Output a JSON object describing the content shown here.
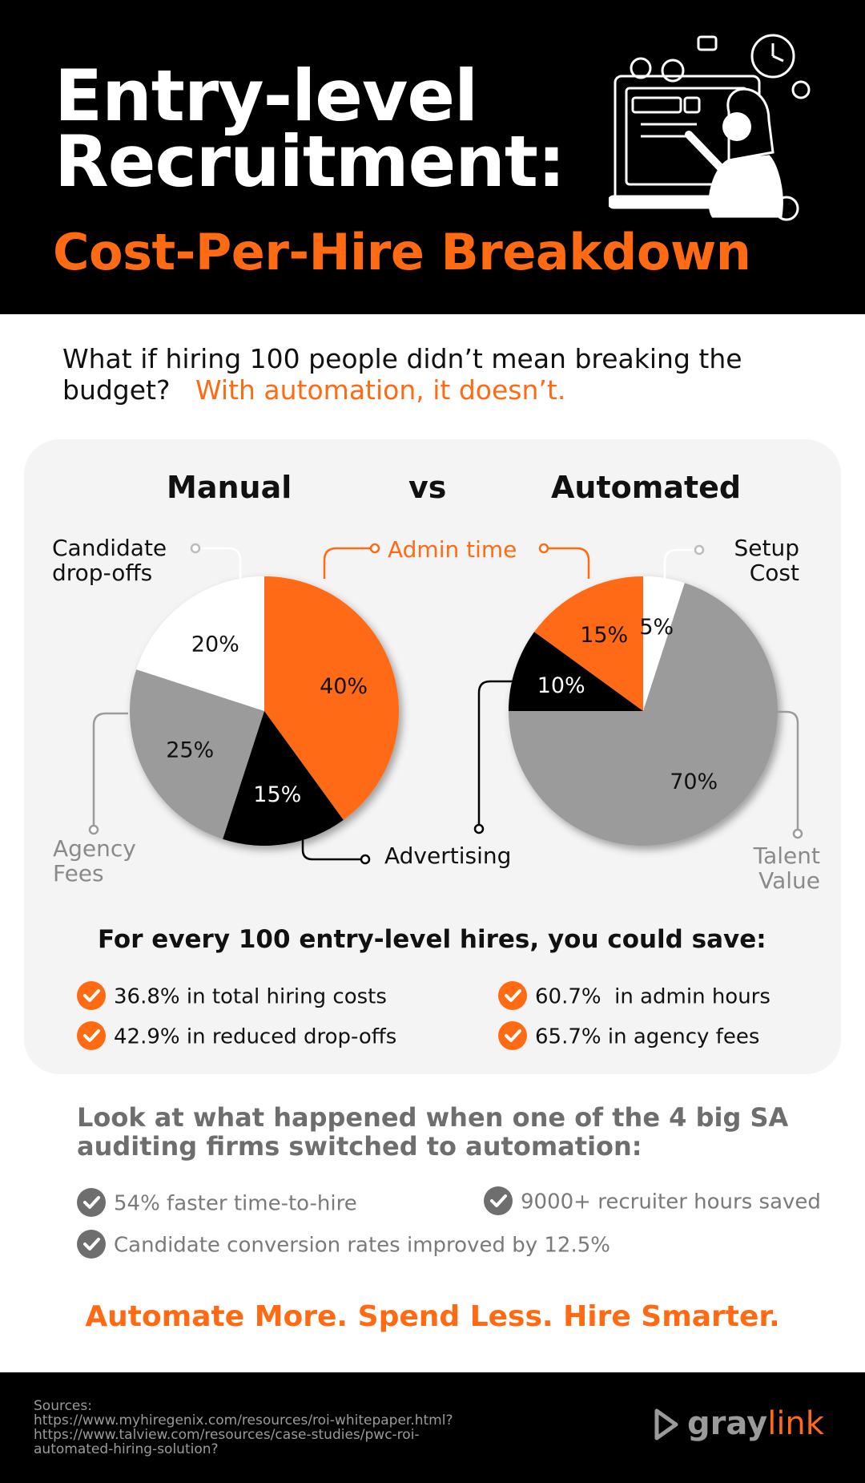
{
  "header": {
    "title_line1": "Entry-level",
    "title_line2": "Recruitment:",
    "subtitle": "Cost-Per-Hire Breakdown"
  },
  "intro": {
    "question": "What if hiring 100 people didn’t mean breaking the budget?",
    "answer": "With automation, it doesn’t."
  },
  "comparison": {
    "left_heading": "Manual",
    "vs": "vs",
    "right_heading": "Automated"
  },
  "chart_data": [
    {
      "type": "pie",
      "title": "Manual",
      "unit": "%",
      "slices": [
        {
          "label": "Admin time",
          "value": 40,
          "color": "#ff6a13",
          "text_color": "#111111"
        },
        {
          "label": "Advertising",
          "value": 15,
          "color": "#000000",
          "text_color": "#ffffff"
        },
        {
          "label": "Agency Fees",
          "value": 25,
          "color": "#9b9b9b",
          "text_color": "#111111"
        },
        {
          "label": "Candidate drop-offs",
          "value": 20,
          "color": "#ffffff",
          "text_color": "#111111"
        }
      ]
    },
    {
      "type": "pie",
      "title": "Automated",
      "unit": "%",
      "slices": [
        {
          "label": "Setup Cost",
          "value": 5,
          "color": "#ffffff",
          "text_color": "#111111"
        },
        {
          "label": "Talent Value",
          "value": 70,
          "color": "#9b9b9b",
          "text_color": "#111111"
        },
        {
          "label": "Advertising",
          "value": 10,
          "color": "#000000",
          "text_color": "#ffffff"
        },
        {
          "label": "Admin time",
          "value": 15,
          "color": "#ff6a13",
          "text_color": "#111111"
        }
      ]
    }
  ],
  "callouts": {
    "candidate_line1": "Candidate",
    "candidate_line2": "drop-offs",
    "admin_time": "Admin time",
    "agency_line1": "Agency",
    "agency_line2": "Fees",
    "advertising": "Advertising",
    "setup_line1": "Setup",
    "setup_line2": "Cost",
    "talent_line1": "Talent",
    "talent_line2": "Value"
  },
  "savings": {
    "heading": "For every 100 entry-level hires, you could save:",
    "items": [
      "36.8% in total hiring costs",
      "42.9% in reduced drop-offs",
      "60.7%  in admin hours",
      "65.7% in agency fees"
    ]
  },
  "case_study": {
    "heading": "Look at what happened when one of the 4 big SA auditing firms switched to automation:",
    "items": [
      "54% faster time-to-hire",
      "9000+ recruiter hours saved",
      "Candidate conversion rates improved by 12.5%"
    ]
  },
  "cta": "Automate More. Spend Less. Hire Smarter.",
  "footer": {
    "sources_label": "Sources:",
    "source1": "https://www.myhiregenix.com/resources/roi-whitepaper.html?",
    "source2_line1": "https://www.talview.com/resources/case-studies/pwc-roi-",
    "source2_line2": "automated-hiring-solution?",
    "logo_part1": "gray",
    "logo_part2": "link"
  },
  "colors": {
    "accent": "#ff6a13",
    "gray": "#9b9b9b",
    "dark": "#000000"
  }
}
